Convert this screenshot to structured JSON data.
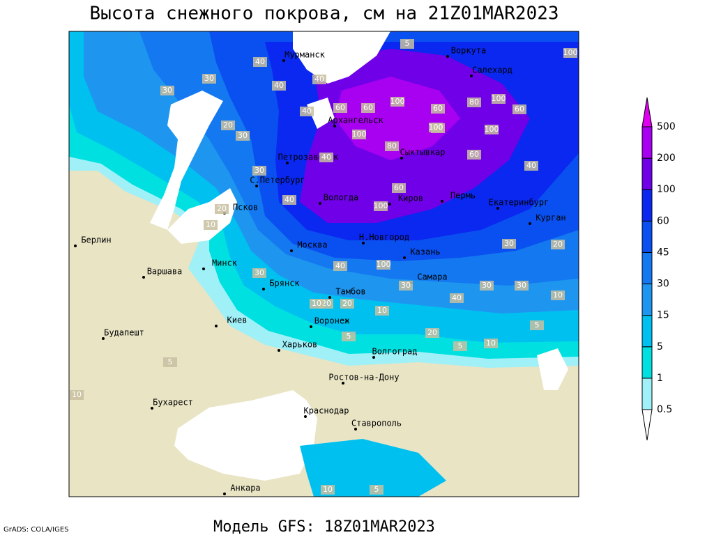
{
  "title": "Высота снежного покрова, см на 21Z01MAR2023",
  "footer": "Модель GFS: 18Z01MAR2023",
  "credit": "GrADS: COLA/IGES",
  "legend": {
    "levels": [
      0.5,
      1,
      5,
      15,
      30,
      45,
      60,
      100,
      200,
      500
    ],
    "colors": [
      "#ffffff",
      "#a0f0f8",
      "#00e0e0",
      "#00c0f0",
      "#1e96f0",
      "#1478f0",
      "#0a50f0",
      "#0a28f0",
      "#7000e8",
      "#a800f0",
      "#e000f0"
    ]
  },
  "cities": [
    "Мурманск",
    "Воркута",
    "Салехард",
    "Архангельск",
    "Петрозаводск",
    "Сыктывкар",
    "С.Петербург",
    "Вологда",
    "Киров",
    "Пермь",
    "Екатеринбург",
    "Псков",
    "Курган",
    "Берлин",
    "Н.Новгород",
    "Москва",
    "Казань",
    "Минск",
    "Варшава",
    "Самара",
    "Брянск",
    "Тамбов",
    "Киев",
    "Воронеж",
    "Будапешт",
    "Харьков",
    "Волгоград",
    "Ростов-на-Дону",
    "Бухарест",
    "Краснодар",
    "Ставрополь",
    "Анкара"
  ],
  "contour_labels": [
    40,
    5,
    40,
    100,
    60,
    40,
    40,
    30,
    30,
    60,
    60,
    80,
    80,
    100,
    100,
    100,
    100,
    60,
    100,
    100,
    20,
    30,
    80,
    40,
    60,
    40,
    60,
    40,
    30,
    100,
    30,
    20,
    10,
    40,
    30,
    30,
    20,
    30,
    40,
    30,
    20,
    10,
    10,
    20,
    10,
    5,
    20,
    10,
    5,
    5,
    10,
    5,
    5,
    10
  ]
}
